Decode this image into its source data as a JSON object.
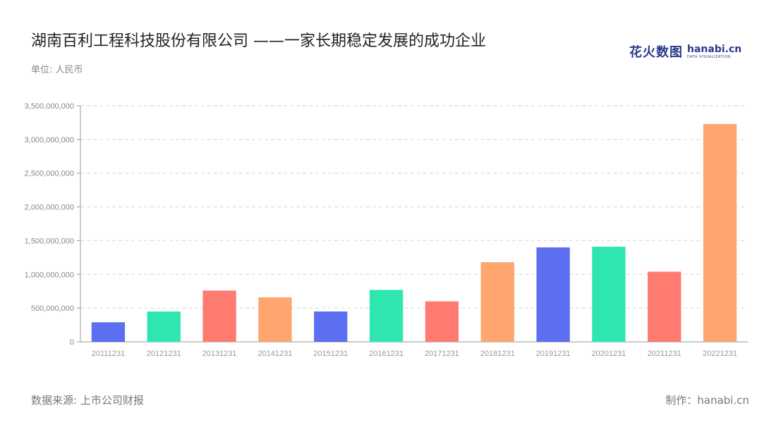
{
  "header": {
    "title": "湖南百利工程科技股份有限公司 ——一家长期稳定发展的成功企业",
    "unit": "单位: 人民币"
  },
  "logo": {
    "cn": "花火数图",
    "en": "hanabi.cn",
    "en_sub": "DATA VISUALIZATION"
  },
  "footer": {
    "source": "数据来源: 上市公司财报",
    "maker": "制作：hanabi.cn"
  },
  "chart_data": {
    "type": "bar",
    "categories": [
      "20111231",
      "20121231",
      "20131231",
      "20141231",
      "20151231",
      "20161231",
      "20171231",
      "20181231",
      "20191231",
      "20201231",
      "20211231",
      "20221231"
    ],
    "values": [
      290000000,
      450000000,
      760000000,
      660000000,
      450000000,
      770000000,
      600000000,
      1180000000,
      1400000000,
      1410000000,
      1040000000,
      3230000000
    ],
    "colors": [
      "#5b6ff0",
      "#2fe6b0",
      "#ff7a70",
      "#ffa56e"
    ],
    "y_ticks": [
      0,
      500000000,
      1000000000,
      1500000000,
      2000000000,
      2500000000,
      3000000000,
      3500000000
    ],
    "y_tick_labels": [
      "0",
      "500,000,000",
      "1,000,000,000",
      "1,500,000,000",
      "2,000,000,000",
      "2,500,000,000",
      "3,000,000,000",
      "3,500,000,000"
    ],
    "ylim": [
      0,
      3500000000
    ],
    "grid": true,
    "title": "湖南百利工程科技股份有限公司 ——一家长期稳定发展的成功企业",
    "xlabel": "",
    "ylabel": ""
  }
}
